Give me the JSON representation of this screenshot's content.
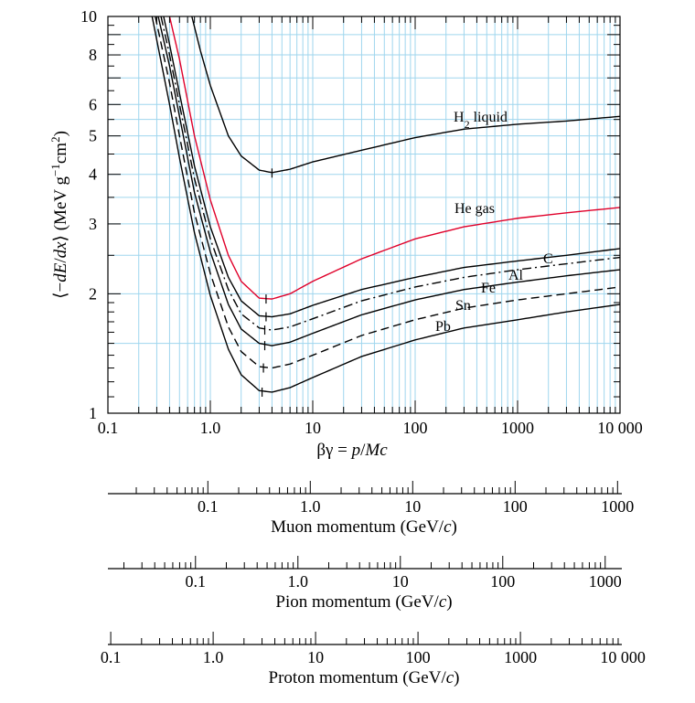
{
  "chart_data": {
    "type": "line",
    "x": {
      "label": "βγ = p/Mc",
      "scale": "log",
      "lim": [
        0.1,
        10000
      ],
      "tick_labels": [
        "0.1",
        "1.0",
        "10",
        "100",
        "1000",
        "10 000"
      ]
    },
    "y": {
      "label": "⟨−dE/dx⟩ (MeV g−1cm2)",
      "scale": "log",
      "lim": [
        1,
        10
      ],
      "tick_labels": [
        "1",
        "2",
        "3",
        "4",
        "5",
        "6",
        "8",
        "10"
      ]
    },
    "grid": true,
    "series": [
      {
        "name": "H2 liquid",
        "color": "#000000",
        "style": "solid",
        "points": [
          [
            0.66,
            10
          ],
          [
            0.8,
            8.2
          ],
          [
            1.0,
            6.7
          ],
          [
            1.5,
            5.0
          ],
          [
            2.0,
            4.45
          ],
          [
            3.0,
            4.1
          ],
          [
            4.0,
            4.04
          ],
          [
            6.0,
            4.12
          ],
          [
            10,
            4.3
          ],
          [
            30,
            4.6
          ],
          [
            100,
            4.95
          ],
          [
            300,
            5.2
          ],
          [
            1000,
            5.35
          ],
          [
            3000,
            5.45
          ],
          [
            10000,
            5.6
          ]
        ]
      },
      {
        "name": "He gas",
        "color": "#e0002a",
        "style": "solid",
        "points": [
          [
            0.4,
            10
          ],
          [
            0.5,
            7.8
          ],
          [
            0.7,
            5.0
          ],
          [
            1.0,
            3.45
          ],
          [
            1.5,
            2.5
          ],
          [
            2.0,
            2.15
          ],
          [
            3.0,
            1.95
          ],
          [
            4.0,
            1.94
          ],
          [
            6.0,
            2.0
          ],
          [
            10,
            2.15
          ],
          [
            30,
            2.45
          ],
          [
            100,
            2.75
          ],
          [
            300,
            2.95
          ],
          [
            1000,
            3.1
          ],
          [
            3000,
            3.2
          ],
          [
            10000,
            3.3
          ]
        ]
      },
      {
        "name": "C",
        "color": "#000000",
        "style": "solid",
        "points": [
          [
            0.35,
            10
          ],
          [
            0.4,
            8.5
          ],
          [
            0.5,
            6.4
          ],
          [
            0.7,
            4.2
          ],
          [
            1.0,
            2.95
          ],
          [
            1.5,
            2.2
          ],
          [
            2.0,
            1.92
          ],
          [
            3.0,
            1.76
          ],
          [
            4.0,
            1.75
          ],
          [
            6.0,
            1.78
          ],
          [
            10,
            1.87
          ],
          [
            30,
            2.05
          ],
          [
            100,
            2.2
          ],
          [
            300,
            2.33
          ],
          [
            1000,
            2.42
          ],
          [
            3000,
            2.5
          ],
          [
            10000,
            2.6
          ]
        ]
      },
      {
        "name": "Al",
        "color": "#000000",
        "style": "dashdot",
        "points": [
          [
            0.33,
            10
          ],
          [
            0.4,
            8.0
          ],
          [
            0.5,
            6.0
          ],
          [
            0.7,
            3.9
          ],
          [
            1.0,
            2.75
          ],
          [
            1.5,
            2.05
          ],
          [
            2.0,
            1.78
          ],
          [
            3.0,
            1.64
          ],
          [
            4.0,
            1.62
          ],
          [
            6.0,
            1.65
          ],
          [
            10,
            1.73
          ],
          [
            30,
            1.92
          ],
          [
            100,
            2.08
          ],
          [
            300,
            2.2
          ],
          [
            1000,
            2.3
          ],
          [
            3000,
            2.38
          ],
          [
            10000,
            2.47
          ]
        ]
      },
      {
        "name": "Fe",
        "color": "#000000",
        "style": "solid",
        "points": [
          [
            0.31,
            10
          ],
          [
            0.4,
            7.5
          ],
          [
            0.5,
            5.6
          ],
          [
            0.7,
            3.6
          ],
          [
            1.0,
            2.55
          ],
          [
            1.5,
            1.88
          ],
          [
            2.0,
            1.63
          ],
          [
            3.0,
            1.5
          ],
          [
            4.0,
            1.48
          ],
          [
            6.0,
            1.51
          ],
          [
            10,
            1.59
          ],
          [
            30,
            1.77
          ],
          [
            100,
            1.93
          ],
          [
            300,
            2.05
          ],
          [
            1000,
            2.14
          ],
          [
            3000,
            2.22
          ],
          [
            10000,
            2.3
          ]
        ]
      },
      {
        "name": "Sn",
        "color": "#000000",
        "style": "dashed",
        "points": [
          [
            0.29,
            10
          ],
          [
            0.4,
            6.8
          ],
          [
            0.5,
            5.0
          ],
          [
            0.7,
            3.2
          ],
          [
            1.0,
            2.25
          ],
          [
            1.5,
            1.65
          ],
          [
            2.0,
            1.43
          ],
          [
            3.0,
            1.31
          ],
          [
            4.0,
            1.3
          ],
          [
            6.0,
            1.33
          ],
          [
            10,
            1.4
          ],
          [
            30,
            1.57
          ],
          [
            100,
            1.72
          ],
          [
            300,
            1.84
          ],
          [
            1000,
            1.93
          ],
          [
            3000,
            2.0
          ],
          [
            10000,
            2.08
          ]
        ]
      },
      {
        "name": "Pb",
        "color": "#000000",
        "style": "solid",
        "points": [
          [
            0.27,
            10
          ],
          [
            0.4,
            6.0
          ],
          [
            0.5,
            4.4
          ],
          [
            0.7,
            2.85
          ],
          [
            1.0,
            1.98
          ],
          [
            1.5,
            1.45
          ],
          [
            2.0,
            1.25
          ],
          [
            3.0,
            1.14
          ],
          [
            4.0,
            1.13
          ],
          [
            6.0,
            1.16
          ],
          [
            10,
            1.23
          ],
          [
            30,
            1.39
          ],
          [
            100,
            1.53
          ],
          [
            300,
            1.64
          ],
          [
            1000,
            1.72
          ],
          [
            3000,
            1.8
          ],
          [
            10000,
            1.88
          ]
        ]
      }
    ],
    "minimum_markers": [
      {
        "series": "H2 liquid",
        "x": 4.0,
        "y": 4.03
      },
      {
        "series": "He gas",
        "x": 3.5,
        "y": 1.94
      },
      {
        "series": "C",
        "x": 3.5,
        "y": 1.75
      },
      {
        "series": "Al",
        "x": 3.4,
        "y": 1.62
      },
      {
        "series": "Fe",
        "x": 3.4,
        "y": 1.48
      },
      {
        "series": "Sn",
        "x": 3.3,
        "y": 1.3
      },
      {
        "series": "Pb",
        "x": 3.2,
        "y": 1.13
      }
    ],
    "momentum_axes": [
      {
        "label": "Muon momentum (GeV/c)",
        "mass_GeV": 0.1057,
        "tick_labels": [
          "0.1",
          "1.0",
          "10",
          "100",
          "1000"
        ],
        "tick_values": [
          0.1,
          1,
          10,
          100,
          1000
        ]
      },
      {
        "label": "Pion momentum (GeV/c)",
        "mass_GeV": 0.1396,
        "tick_labels": [
          "0.1",
          "1.0",
          "10",
          "100",
          "1000"
        ],
        "tick_values": [
          0.1,
          1,
          10,
          100,
          1000
        ]
      },
      {
        "label": "Proton momentum (GeV/c)",
        "mass_GeV": 0.9383,
        "tick_labels": [
          "0.1",
          "1.0",
          "10",
          "100",
          "1000",
          "10 000"
        ],
        "tick_values": [
          0.1,
          1,
          10,
          100,
          1000,
          10000
        ]
      }
    ]
  }
}
